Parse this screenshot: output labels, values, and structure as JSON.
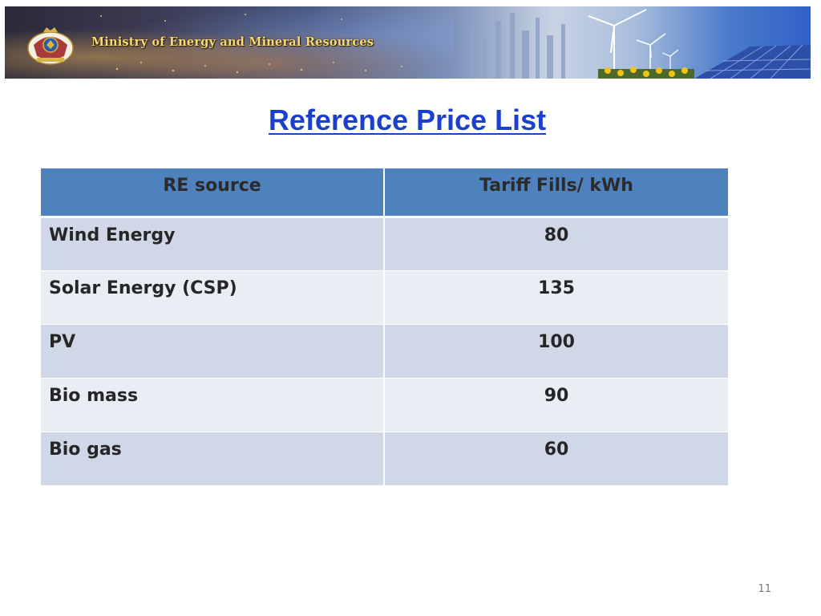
{
  "banner": {
    "ministry_name": "Ministry of Energy and Mineral Resources",
    "crest_icon": "jordan-coat-of-arms-icon",
    "scene_icons": [
      "city-lights",
      "refinery-towers",
      "wind-turbine-icon",
      "solar-panel-icon",
      "sunflowers"
    ]
  },
  "title": "Reference Price List",
  "table": {
    "headers": [
      "RE source",
      "Tariff Fills/ kWh"
    ],
    "rows": [
      {
        "source": "Wind Energy",
        "tariff": "80"
      },
      {
        "source": "Solar Energy (CSP)",
        "tariff": "135"
      },
      {
        "source": "PV",
        "tariff": "100"
      },
      {
        "source": "Bio mass",
        "tariff": "90"
      },
      {
        "source": "Bio gas",
        "tariff": "60"
      }
    ]
  },
  "page_number": "11",
  "colors": {
    "title": "#1b3fcf",
    "header_bg": "#4f81bd",
    "row_odd": "#d0d8e8",
    "row_even": "#e9edf4"
  }
}
